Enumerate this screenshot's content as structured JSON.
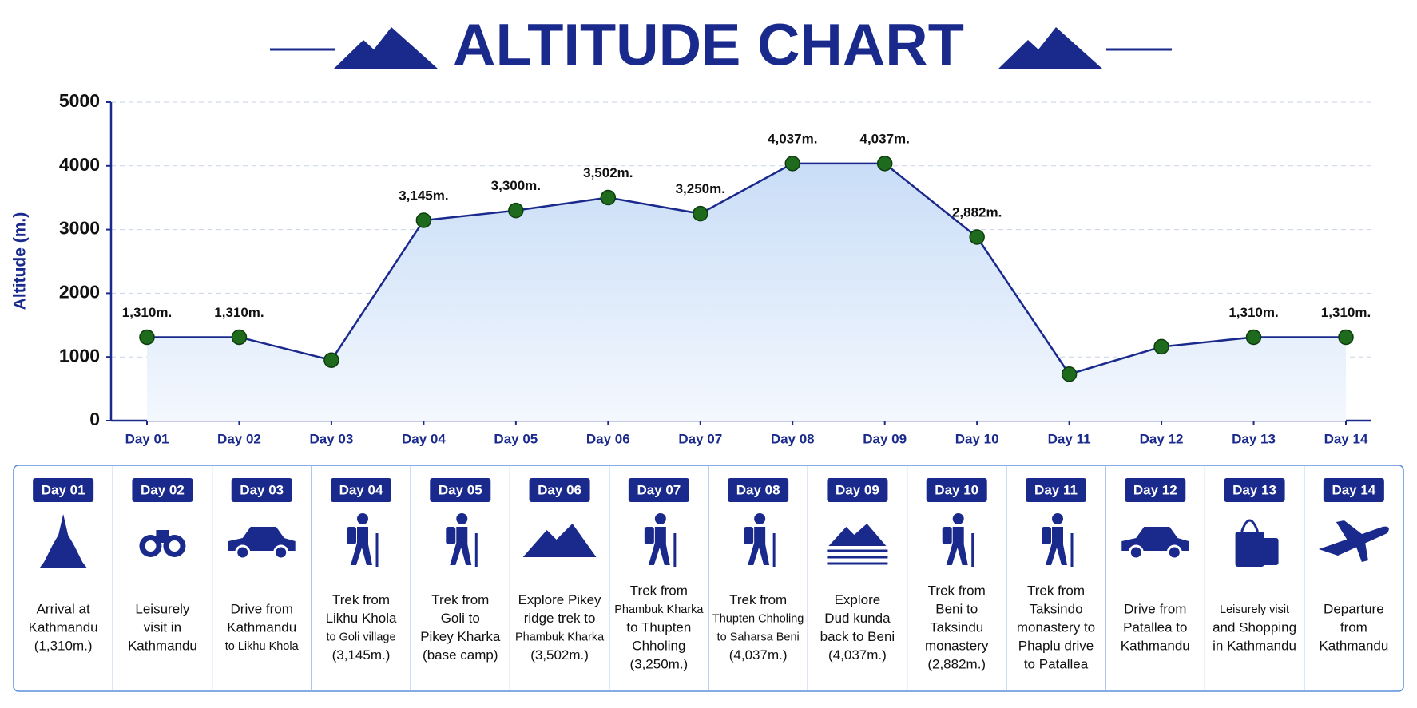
{
  "chart_data": {
    "type": "line",
    "title": "ALTITUDE CHART",
    "y_label": "Altitude (m.)",
    "categories": [
      "Day 01",
      "Day 02",
      "Day 03",
      "Day 04",
      "Day 05",
      "Day 06",
      "Day 07",
      "Day 08",
      "Day 09",
      "Day 10",
      "Day 11",
      "Day 12",
      "Day 13",
      "Day 14"
    ],
    "values": [
      1310,
      1310,
      950,
      3145,
      3300,
      3502,
      3250,
      4037,
      4037,
      2882,
      730,
      1160,
      1310,
      1310
    ],
    "value_labels": [
      "1,310m.",
      "1,310m.",
      null,
      "3,145m.",
      "3,300m.",
      "3,502m.",
      "3,250m.",
      "4,037m.",
      "4,037m.",
      "2,882m.",
      null,
      null,
      "1,310m.",
      "1,310m."
    ],
    "color": "#1a2a8c",
    "marker_color": "#1e6b1e",
    "ylim": [
      0,
      5000
    ],
    "yticks": [
      0,
      1000,
      2000,
      3000,
      4000,
      5000
    ],
    "grid": true
  },
  "itinerary": [
    [
      "Arrival at",
      "Kathmandu",
      "(1,310m.)"
    ],
    [
      "Leisurely",
      "visit in",
      "Kathmandu"
    ],
    [
      "Drive from",
      "Kathmandu",
      "to Likhu Khola"
    ],
    [
      "Trek from",
      "Likhu Khola",
      "to Goli village",
      "(3,145m.)"
    ],
    [
      "Trek from",
      "Goli to",
      "Pikey Kharka",
      "(base camp)"
    ],
    [
      "Explore Pikey",
      "ridge trek to",
      "Phambuk Kharka",
      "(3,502m.)"
    ],
    [
      "Trek from",
      "Phambuk Kharka",
      "to Thupten",
      "Chholing",
      "(3,250m.)"
    ],
    [
      "Trek from",
      "Thupten Chholing",
      "to Saharsa Beni",
      "(4,037m.)"
    ],
    [
      "Explore",
      "Dud kunda",
      "back to Beni",
      "(4,037m.)"
    ],
    [
      "Trek from",
      "Beni to",
      "Taksindu",
      "monastery",
      "(2,882m.)"
    ],
    [
      "Trek from",
      "Taksindo",
      "monastery to",
      "Phaplu drive",
      "to Patallea"
    ],
    [
      "Drive from",
      "Patallea to",
      "Kathmandu"
    ],
    [
      "Leisurely visit",
      "and Shopping",
      "in Kathmandu"
    ],
    [
      "Departure",
      "from",
      "Kathmandu"
    ]
  ]
}
